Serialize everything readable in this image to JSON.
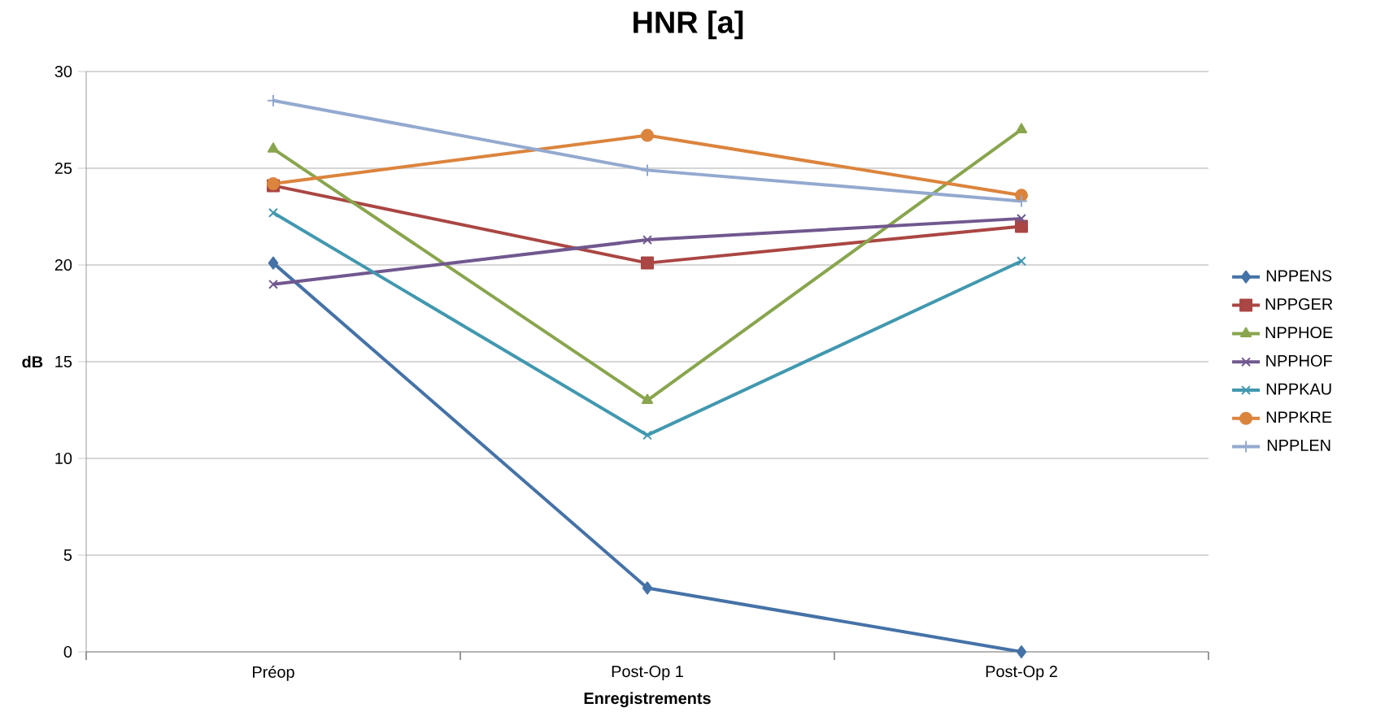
{
  "chart_data": {
    "type": "line",
    "title": "HNR [a]",
    "xlabel": "Enregistrements",
    "ylabel": "dB",
    "categories": [
      "Préop",
      "Post-Op 1",
      "Post-Op 2"
    ],
    "series": [
      {
        "name": "NPPENS",
        "color": "#4572a7",
        "marker": "diamond",
        "values": [
          20.1,
          3.3,
          0
        ]
      },
      {
        "name": "NPPGER",
        "color": "#aa4643",
        "marker": "square",
        "values": [
          24.1,
          20.1,
          22.0
        ]
      },
      {
        "name": "NPPHOE",
        "color": "#89a54e",
        "marker": "triangle",
        "values": [
          26.0,
          13.0,
          27.0
        ]
      },
      {
        "name": "NPPHOF",
        "color": "#71588f",
        "marker": "cross",
        "values": [
          19.0,
          21.3,
          22.4
        ]
      },
      {
        "name": "NPPKAU",
        "color": "#4198af",
        "marker": "cross",
        "values": [
          22.7,
          11.2,
          20.2
        ]
      },
      {
        "name": "NPPKRE",
        "color": "#db843d",
        "marker": "circle",
        "values": [
          24.2,
          26.7,
          23.6
        ]
      },
      {
        "name": "NPPLEN",
        "color": "#93a9cf",
        "marker": "plus",
        "values": [
          28.5,
          24.9,
          23.3
        ]
      }
    ],
    "ylim": [
      0,
      30
    ],
    "yticks": [
      0,
      5,
      10,
      15,
      20,
      25,
      30
    ],
    "grid": "y",
    "legend": "right"
  }
}
